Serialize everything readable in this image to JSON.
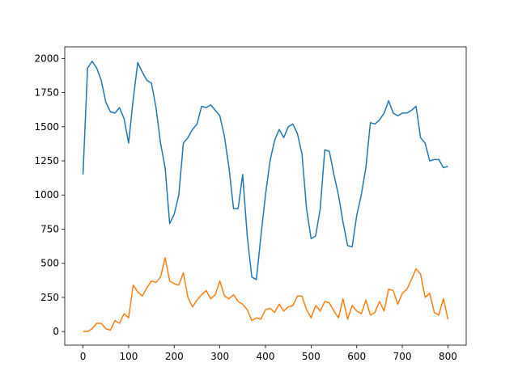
{
  "chart_data": {
    "type": "line",
    "x": [
      0,
      10,
      20,
      30,
      40,
      50,
      60,
      70,
      80,
      90,
      100,
      110,
      120,
      130,
      140,
      150,
      160,
      170,
      180,
      190,
      200,
      210,
      220,
      230,
      240,
      250,
      260,
      270,
      280,
      290,
      300,
      310,
      320,
      330,
      340,
      350,
      360,
      370,
      380,
      390,
      400,
      410,
      420,
      430,
      440,
      450,
      460,
      470,
      480,
      490,
      500,
      510,
      520,
      530,
      540,
      550,
      560,
      570,
      580,
      590,
      600,
      610,
      620,
      630,
      640,
      650,
      660,
      670,
      680,
      690,
      700,
      710,
      720,
      730,
      740,
      750,
      760,
      770,
      780,
      790,
      800
    ],
    "series": [
      {
        "color": "#1f77b4",
        "values": [
          1150,
          1930,
          1980,
          1930,
          1840,
          1680,
          1610,
          1600,
          1640,
          1560,
          1380,
          1700,
          1970,
          1900,
          1840,
          1820,
          1640,
          1380,
          1200,
          790,
          860,
          1000,
          1380,
          1420,
          1480,
          1520,
          1650,
          1640,
          1660,
          1620,
          1580,
          1430,
          1200,
          900,
          900,
          1150,
          700,
          400,
          380,
          700,
          1000,
          1250,
          1400,
          1480,
          1420,
          1500,
          1520,
          1450,
          1300,
          900,
          680,
          700,
          900,
          1330,
          1320,
          1150,
          1000,
          800,
          630,
          620,
          850,
          1000,
          1200,
          1530,
          1520,
          1550,
          1600,
          1690,
          1600,
          1580,
          1600,
          1600,
          1620,
          1650,
          1420,
          1380,
          1250,
          1260,
          1260,
          1200,
          1210
        ]
      },
      {
        "color": "#ff7f0e",
        "values": [
          0,
          0,
          20,
          60,
          60,
          20,
          10,
          80,
          60,
          130,
          100,
          340,
          290,
          260,
          320,
          370,
          360,
          400,
          540,
          370,
          350,
          340,
          430,
          250,
          180,
          230,
          270,
          300,
          240,
          270,
          370,
          260,
          240,
          270,
          220,
          200,
          160,
          80,
          100,
          90,
          160,
          170,
          140,
          200,
          150,
          180,
          190,
          260,
          260,
          160,
          100,
          190,
          150,
          220,
          210,
          150,
          100,
          240,
          90,
          190,
          150,
          130,
          230,
          120,
          140,
          220,
          150,
          310,
          300,
          200,
          280,
          310,
          380,
          460,
          420,
          250,
          280,
          140,
          120,
          240,
          90
        ]
      }
    ],
    "xlim": [
      -40,
      840
    ],
    "ylim": [
      -100,
      2085
    ],
    "xticks": [
      0,
      100,
      200,
      300,
      400,
      500,
      600,
      700,
      800
    ],
    "yticks": [
      0,
      250,
      500,
      750,
      1000,
      1250,
      1500,
      1750,
      2000
    ]
  }
}
